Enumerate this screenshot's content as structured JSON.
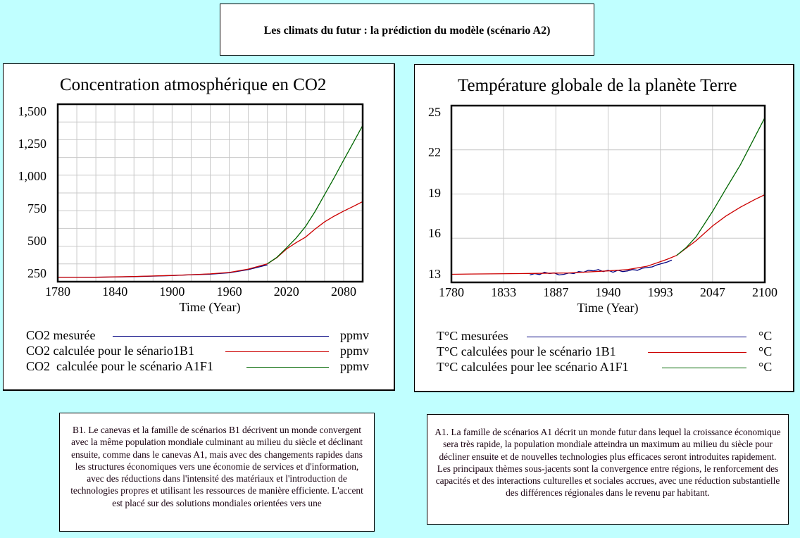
{
  "header": {
    "title": "Les climats du futur : la prédiction du modèle (scénario A2)"
  },
  "colors": {
    "background": "#c0ffff",
    "measured": "#000080",
    "b1": "#cc0000",
    "a1f1": "#006600",
    "grid": "#c8c8c8"
  },
  "chart_data": [
    {
      "type": "line",
      "title": "Concentration atmosphérique en CO2",
      "xlabel": "Time (Year)",
      "ylabel": "",
      "xlim": [
        1780,
        2100
      ],
      "ylim": [
        190,
        1558
      ],
      "grid": true,
      "xticks": [
        "1780",
        "1840",
        "1900",
        "1960",
        "2020",
        "2080"
      ],
      "xtick_values": [
        1780,
        1840,
        1900,
        1960,
        2020,
        2080
      ],
      "yticks": [
        "1,500",
        "1,250",
        "1,000",
        "750",
        "500",
        "250"
      ],
      "ytick_values": [
        1500,
        1250,
        1000,
        750,
        500,
        250
      ],
      "legend_position": "bottom",
      "series": [
        {
          "name": "CO2 mesurée",
          "unit": "ppmv",
          "color": "#000080",
          "x": [
            1780,
            1800,
            1820,
            1840,
            1860,
            1880,
            1900,
            1920,
            1940,
            1960,
            1980,
            2000
          ],
          "y": [
            223,
            223,
            224,
            226,
            229,
            233,
            237,
            243,
            248,
            259,
            283,
            320
          ]
        },
        {
          "name": "CO2 calculée pour le sénario1B1",
          "unit": "ppmv",
          "color": "#cc0000",
          "x": [
            1780,
            1800,
            1820,
            1840,
            1860,
            1880,
            1900,
            1920,
            1940,
            1960,
            1980,
            2000,
            2010,
            2020,
            2030,
            2040,
            2050,
            2060,
            2070,
            2080,
            2090,
            2100
          ],
          "y": [
            223,
            223,
            224,
            227,
            230,
            234,
            238,
            244,
            250,
            261,
            287,
            328,
            375,
            442,
            490,
            533,
            595,
            651,
            695,
            734,
            770,
            807
          ]
        },
        {
          "name": "CO2  calculée pour le scénario A1F1",
          "unit": "ppmv",
          "color": "#006600",
          "x": [
            2000,
            2010,
            2020,
            2030,
            2040,
            2050,
            2060,
            2070,
            2080,
            2090,
            2100
          ],
          "y": [
            328,
            378,
            450,
            525,
            615,
            730,
            861,
            990,
            1126,
            1260,
            1394
          ]
        }
      ]
    },
    {
      "type": "line",
      "title": "Température globale de la planète Terre",
      "xlabel": "Time (Year)",
      "ylabel": "",
      "xlim": [
        1780,
        2100
      ],
      "ylim": [
        12.4,
        25.5
      ],
      "grid": true,
      "xticks": [
        "1780",
        "1833",
        "1887",
        "1940",
        "1993",
        "2047",
        "2100"
      ],
      "xtick_values": [
        1780,
        1833.3,
        1886.7,
        1940,
        1993.3,
        2046.7,
        2100
      ],
      "yticks": [
        "25",
        "22",
        "19",
        "16",
        "13"
      ],
      "ytick_values": [
        25,
        22,
        19,
        16,
        13
      ],
      "legend_position": "bottom",
      "series": [
        {
          "name": "T°C mesurées",
          "unit": "°C",
          "color": "#000080",
          "x": [
            1860,
            1865,
            1870,
            1875,
            1880,
            1885,
            1890,
            1895,
            1900,
            1905,
            1910,
            1915,
            1920,
            1925,
            1930,
            1935,
            1940,
            1945,
            1950,
            1955,
            1960,
            1965,
            1970,
            1975,
            1980,
            1985,
            1990,
            1995,
            2000,
            2005
          ],
          "y": [
            12.95,
            13.05,
            12.98,
            13.15,
            13.05,
            13.1,
            12.95,
            13.0,
            13.1,
            13.05,
            13.2,
            13.15,
            13.3,
            13.25,
            13.35,
            13.2,
            13.3,
            13.15,
            13.3,
            13.2,
            13.25,
            13.35,
            13.3,
            13.45,
            13.5,
            13.55,
            13.7,
            13.8,
            13.9,
            14.05
          ]
        },
        {
          "name": "T°C calculées pour le scénario 1B1",
          "unit": "°C",
          "color": "#cc0000",
          "x": [
            1780,
            1800,
            1850,
            1900,
            1940,
            1960,
            1980,
            1990,
            2000,
            2010,
            2020,
            2030,
            2047,
            2060,
            2075,
            2090,
            2100
          ],
          "y": [
            13.0,
            13.02,
            13.05,
            13.1,
            13.25,
            13.35,
            13.6,
            13.85,
            14.1,
            14.4,
            14.95,
            15.5,
            16.6,
            17.3,
            17.97,
            18.55,
            18.9
          ]
        },
        {
          "name": "T°C calculées pour lee scénario A1F1",
          "unit": "°C",
          "color": "#006600",
          "x": [
            2010,
            2020,
            2030,
            2047,
            2060,
            2075,
            2090,
            2100
          ],
          "y": [
            14.4,
            15.0,
            15.8,
            17.7,
            19.3,
            21.1,
            23.2,
            24.6
          ]
        }
      ]
    }
  ],
  "descriptions": {
    "b1": "B1. Le canevas et la famille de scénarios B1 décrivent un monde convergent avec la même population mondiale culminant au milieu du siècle et déclinant ensuite, comme dans le canevas A1, mais avec des changements rapides dans les structures économiques vers une économie de services et d'information, avec des réductions dans l'intensité des matériaux et l'introduction de technologies propres et utilisant les ressources de manière efficiente. L'accent est placé sur des solutions mondiales orientées vers une",
    "a1": "A1. La famille de scénarios A1 décrit un monde futur dans lequel la croissance économique sera très rapide, la population mondiale atteindra un maximum au milieu du siècle pour décliner ensuite et de nouvelles technologies plus efficaces seront introduites rapidement. Les principaux thèmes sous-jacents sont la convergence entre régions, le renforcement des capacités et des interactions culturelles et sociales accrues, avec une réduction substantielle des différences régionales dans le revenu par habitant."
  }
}
